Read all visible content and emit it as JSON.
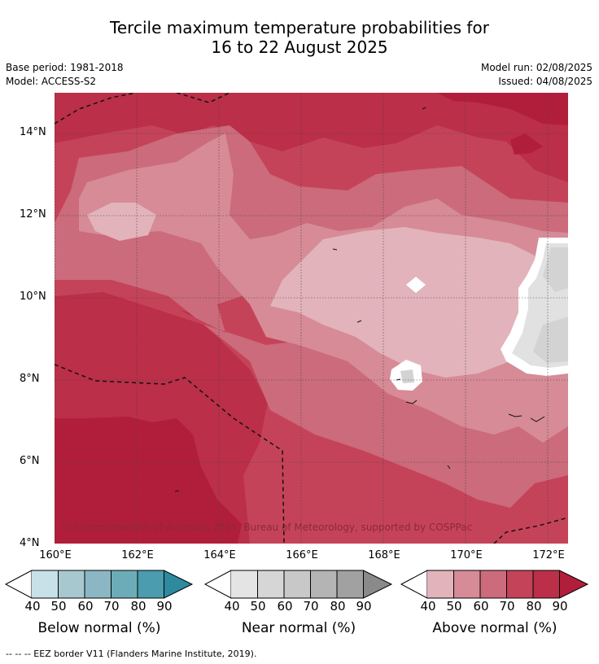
{
  "title": {
    "line1": "Tercile maximum temperature probabilities for",
    "line2": "16 to 22 August 2025"
  },
  "meta": {
    "base_period": "Base period: 1981-2018",
    "model": "Model: ACCESS-S2",
    "model_run": "Model run: 02/08/2025",
    "issued": "Issued: 04/08/2025"
  },
  "map": {
    "copyright": "© Commonwealth of Australia 2025, Bureau of Meteorology, supported by COSPPac",
    "lat_labels": [
      "14°N",
      "12°N",
      "10°N",
      "8°N",
      "6°N",
      "4°N"
    ],
    "lon_labels": [
      "160°E",
      "162°E",
      "164°E",
      "166°E",
      "168°E",
      "170°E",
      "172°E"
    ],
    "background_color": "#c54359",
    "shading_colors": {
      "above_40": "#e2b3bb",
      "above_50": "#d68b97",
      "above_60": "#cb6b7b",
      "above_70": "#c54359",
      "above_80": "#bb2f48",
      "above_90": "#b11e3b",
      "near_30": "#ffffff",
      "near_40": "#e1e1e1",
      "near_50": "#d3d3d3"
    }
  },
  "legends": [
    {
      "id": "below",
      "title": "Below normal (%)",
      "ticks": [
        "40",
        "50",
        "60",
        "70",
        "80",
        "90"
      ],
      "colors": [
        "#c8e0e7",
        "#a7c8cf",
        "#8ab7c3",
        "#6cacb9",
        "#4a9cae",
        "#2d8a9f"
      ],
      "low_color": "#ffffff"
    },
    {
      "id": "near",
      "title": "Near normal (%)",
      "ticks": [
        "40",
        "50",
        "60",
        "70",
        "80",
        "90"
      ],
      "colors": [
        "#e4e4e4",
        "#d6d6d6",
        "#c8c8c8",
        "#b4b4b4",
        "#a1a1a1",
        "#8a8a8a"
      ],
      "low_color": "#ffffff"
    },
    {
      "id": "above",
      "title": "Above normal (%)",
      "ticks": [
        "40",
        "50",
        "60",
        "70",
        "80",
        "90"
      ],
      "colors": [
        "#e2b3bb",
        "#d68b97",
        "#cb6b7b",
        "#c54359",
        "#bb2f48",
        "#b11e3b"
      ],
      "low_color": "#ffffff"
    }
  ],
  "footer": "--  --  -- EEZ border V11 (Flanders Marine Institute, 2019)."
}
